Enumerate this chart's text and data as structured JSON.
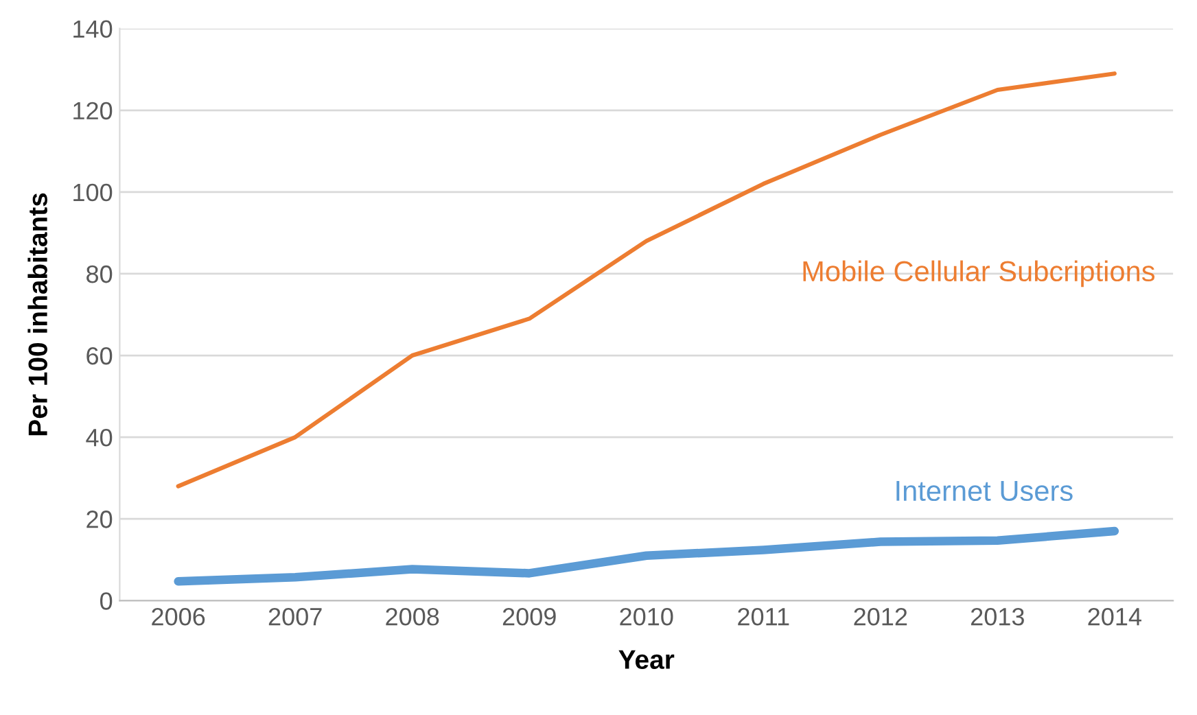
{
  "chart_data": {
    "type": "line",
    "xlabel": "Year",
    "ylabel": "Per 100 inhabitants",
    "categories": [
      "2006",
      "2007",
      "2008",
      "2009",
      "2010",
      "2011",
      "2012",
      "2013",
      "2014"
    ],
    "series": [
      {
        "name": "Mobile Cellular Subcriptions",
        "color": "#ed7d31",
        "values": [
          28,
          40,
          60,
          69,
          88,
          102,
          114,
          125,
          129
        ]
      },
      {
        "name": "Internet Users",
        "color": "#5b9bd5",
        "values": [
          4.7,
          5.7,
          7.7,
          6.7,
          11,
          12.4,
          14.4,
          14.7,
          17
        ]
      }
    ],
    "ylim": [
      0,
      140
    ],
    "yticks": [
      0,
      20,
      40,
      60,
      80,
      100,
      120,
      140
    ],
    "grid": "y",
    "marker": "none",
    "line_style": "solid",
    "legend": false
  }
}
